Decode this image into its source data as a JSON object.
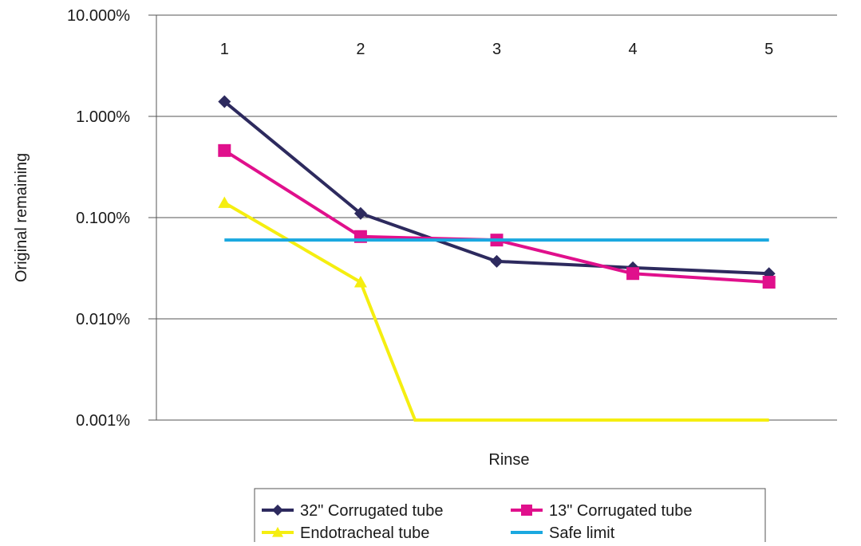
{
  "chart_data": {
    "type": "line",
    "title": "",
    "xlabel": "Rinse",
    "ylabel": "Original remaining",
    "y_scale": "log",
    "ylim": [
      0.001,
      10.0
    ],
    "y_ticks": [
      10.0,
      1.0,
      0.1,
      0.01,
      0.001
    ],
    "y_tick_labels": [
      "10.000%",
      "1.000%",
      "0.100%",
      "0.010%",
      "0.001%"
    ],
    "x_axis_position": "top",
    "categories": [
      "1",
      "2",
      "3",
      "4",
      "5"
    ],
    "grid": "horizontal major",
    "legend_position": "bottom",
    "series": [
      {
        "name": "32\" Corrugated tube",
        "color": "#2d2a5e",
        "marker": "diamond",
        "x": [
          1,
          2,
          3,
          4,
          5
        ],
        "values": [
          1.4,
          0.11,
          0.037,
          0.032,
          0.028
        ]
      },
      {
        "name": "13\" Corrugated tube",
        "color": "#e0108c",
        "marker": "square",
        "x": [
          1,
          2,
          3,
          4,
          5
        ],
        "values": [
          0.46,
          0.065,
          0.06,
          0.028,
          0.023
        ]
      },
      {
        "name": "Endotracheal tube",
        "color": "#f5ee10",
        "marker": "triangle",
        "x": [
          1,
          2,
          2.4,
          5
        ],
        "values": [
          0.14,
          0.023,
          0.001,
          0.001
        ],
        "marker_points": [
          0,
          1
        ]
      },
      {
        "name": "Safe limit",
        "color": "#1aa8e0",
        "marker": "none",
        "x": [
          1,
          5
        ],
        "values": [
          0.06,
          0.06
        ]
      }
    ]
  }
}
